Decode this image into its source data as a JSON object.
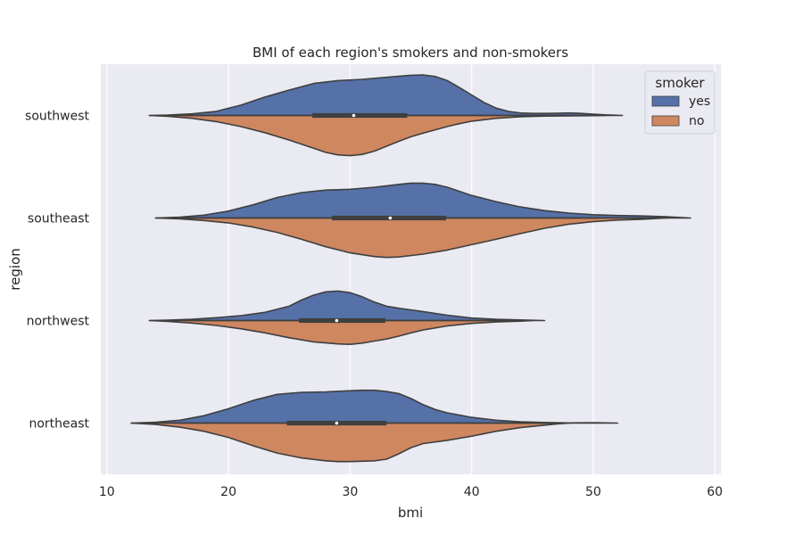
{
  "chart_data": {
    "type": "violin",
    "orientation": "horizontal",
    "split": true,
    "title": "BMI of each region's smokers and non-smokers",
    "xlabel": "bmi",
    "ylabel": "region",
    "xlim": [
      9.5,
      60.5
    ],
    "xticks": [
      10,
      20,
      30,
      40,
      50,
      60
    ],
    "xtick_labels": [
      "10",
      "20",
      "30",
      "40",
      "50",
      "60"
    ],
    "grid": true,
    "categories": [
      "southwest",
      "southeast",
      "northwest",
      "northeast"
    ],
    "legend": {
      "title": "smoker",
      "position": "top-right",
      "entries": [
        {
          "label": "yes",
          "color": "#5571a8"
        },
        {
          "label": "no",
          "color": "#cf8760"
        }
      ]
    },
    "colors": {
      "yes": "#5571a8",
      "no": "#cf8760",
      "background": "#eaeaf2",
      "outline": "#3f3f3f"
    },
    "violins": [
      {
        "region": "southwest",
        "box": {
          "q1": 26.9,
          "median": 30.3,
          "q3": 34.7,
          "whisker_low": 15.9,
          "whisker_high": 47.6
        },
        "yes": [
          [
            13.5,
            0
          ],
          [
            15,
            0.01
          ],
          [
            17,
            0.04
          ],
          [
            19,
            0.1
          ],
          [
            21,
            0.25
          ],
          [
            23,
            0.45
          ],
          [
            25,
            0.62
          ],
          [
            27,
            0.78
          ],
          [
            29,
            0.85
          ],
          [
            31,
            0.88
          ],
          [
            33,
            0.93
          ],
          [
            35,
            0.98
          ],
          [
            36,
            0.99
          ],
          [
            37,
            0.95
          ],
          [
            38,
            0.85
          ],
          [
            39,
            0.68
          ],
          [
            40,
            0.5
          ],
          [
            41,
            0.32
          ],
          [
            42,
            0.18
          ],
          [
            43,
            0.1
          ],
          [
            44,
            0.06
          ],
          [
            45,
            0.05
          ],
          [
            46,
            0.05
          ],
          [
            47,
            0.055
          ],
          [
            48,
            0.06
          ],
          [
            49,
            0.05
          ],
          [
            50,
            0.03
          ],
          [
            51,
            0.015
          ],
          [
            52,
            0.005
          ],
          [
            52.4,
            0
          ]
        ],
        "no": [
          [
            13.5,
            0
          ],
          [
            15,
            0.02
          ],
          [
            17,
            0.07
          ],
          [
            19,
            0.15
          ],
          [
            21,
            0.27
          ],
          [
            23,
            0.42
          ],
          [
            25,
            0.6
          ],
          [
            27,
            0.8
          ],
          [
            28,
            0.9
          ],
          [
            29,
            0.96
          ],
          [
            30,
            0.98
          ],
          [
            31,
            0.95
          ],
          [
            32,
            0.87
          ],
          [
            33,
            0.75
          ],
          [
            34,
            0.63
          ],
          [
            35,
            0.52
          ],
          [
            36,
            0.43
          ],
          [
            37,
            0.35
          ],
          [
            38,
            0.27
          ],
          [
            39,
            0.2
          ],
          [
            40,
            0.14
          ],
          [
            42,
            0.07
          ],
          [
            44,
            0.03
          ],
          [
            46,
            0.015
          ],
          [
            48,
            0.01
          ],
          [
            50,
            0.005
          ],
          [
            51,
            0
          ]
        ]
      },
      {
        "region": "southeast",
        "box": {
          "q1": 28.5,
          "median": 33.3,
          "q3": 37.9,
          "whisker_low": 16.8,
          "whisker_high": 50.4
        },
        "yes": [
          [
            14,
            0
          ],
          [
            16,
            0.02
          ],
          [
            18,
            0.07
          ],
          [
            20,
            0.17
          ],
          [
            22,
            0.32
          ],
          [
            24,
            0.5
          ],
          [
            26,
            0.62
          ],
          [
            28,
            0.68
          ],
          [
            30,
            0.7
          ],
          [
            32,
            0.75
          ],
          [
            34,
            0.82
          ],
          [
            35,
            0.85
          ],
          [
            36,
            0.85
          ],
          [
            37,
            0.82
          ],
          [
            38,
            0.75
          ],
          [
            39,
            0.65
          ],
          [
            40,
            0.55
          ],
          [
            42,
            0.4
          ],
          [
            44,
            0.27
          ],
          [
            46,
            0.18
          ],
          [
            48,
            0.12
          ],
          [
            50,
            0.08
          ],
          [
            52,
            0.06
          ],
          [
            54,
            0.05
          ],
          [
            56,
            0.03
          ],
          [
            57,
            0.015
          ],
          [
            58,
            0
          ]
        ],
        "no": [
          [
            14,
            0
          ],
          [
            16,
            0.02
          ],
          [
            18,
            0.06
          ],
          [
            20,
            0.12
          ],
          [
            22,
            0.22
          ],
          [
            24,
            0.35
          ],
          [
            26,
            0.52
          ],
          [
            28,
            0.7
          ],
          [
            30,
            0.85
          ],
          [
            32,
            0.94
          ],
          [
            33,
            0.96
          ],
          [
            34,
            0.95
          ],
          [
            36,
            0.88
          ],
          [
            38,
            0.78
          ],
          [
            40,
            0.65
          ],
          [
            42,
            0.52
          ],
          [
            44,
            0.38
          ],
          [
            46,
            0.25
          ],
          [
            48,
            0.15
          ],
          [
            50,
            0.09
          ],
          [
            52,
            0.05
          ],
          [
            54,
            0.03
          ],
          [
            55,
            0.015
          ],
          [
            56,
            0
          ]
        ]
      },
      {
        "region": "northwest",
        "box": {
          "q1": 25.8,
          "median": 28.9,
          "q3": 32.9,
          "whisker_low": 17.4,
          "whisker_high": 42.1
        },
        "yes": [
          [
            13.5,
            0
          ],
          [
            15,
            0.01
          ],
          [
            17,
            0.03
          ],
          [
            19,
            0.07
          ],
          [
            21,
            0.12
          ],
          [
            23,
            0.2
          ],
          [
            25,
            0.35
          ],
          [
            26,
            0.5
          ],
          [
            27,
            0.62
          ],
          [
            28,
            0.7
          ],
          [
            29,
            0.72
          ],
          [
            30,
            0.68
          ],
          [
            31,
            0.58
          ],
          [
            32,
            0.45
          ],
          [
            33,
            0.35
          ],
          [
            34,
            0.3
          ],
          [
            35,
            0.26
          ],
          [
            36,
            0.22
          ],
          [
            38,
            0.13
          ],
          [
            40,
            0.06
          ],
          [
            42,
            0.03
          ],
          [
            44,
            0.015
          ],
          [
            46,
            0
          ]
        ],
        "no": [
          [
            13.5,
            0
          ],
          [
            15,
            0.02
          ],
          [
            17,
            0.06
          ],
          [
            19,
            0.12
          ],
          [
            21,
            0.2
          ],
          [
            23,
            0.3
          ],
          [
            25,
            0.42
          ],
          [
            27,
            0.52
          ],
          [
            29,
            0.57
          ],
          [
            30,
            0.58
          ],
          [
            31,
            0.55
          ],
          [
            32,
            0.5
          ],
          [
            33,
            0.45
          ],
          [
            34,
            0.38
          ],
          [
            35,
            0.3
          ],
          [
            36,
            0.23
          ],
          [
            38,
            0.13
          ],
          [
            40,
            0.07
          ],
          [
            42,
            0.035
          ],
          [
            44,
            0.015
          ],
          [
            45,
            0
          ]
        ]
      },
      {
        "region": "northeast",
        "box": {
          "q1": 24.8,
          "median": 28.9,
          "q3": 33.0,
          "whisker_low": 15.9,
          "whisker_high": 48.1
        },
        "yes": [
          [
            12,
            0
          ],
          [
            14,
            0.02
          ],
          [
            16,
            0.07
          ],
          [
            18,
            0.18
          ],
          [
            20,
            0.35
          ],
          [
            22,
            0.55
          ],
          [
            24,
            0.7
          ],
          [
            26,
            0.75
          ],
          [
            28,
            0.76
          ],
          [
            30,
            0.79
          ],
          [
            31,
            0.8
          ],
          [
            32,
            0.8
          ],
          [
            33,
            0.77
          ],
          [
            34,
            0.72
          ],
          [
            35,
            0.6
          ],
          [
            36,
            0.45
          ],
          [
            37,
            0.33
          ],
          [
            38,
            0.25
          ],
          [
            40,
            0.14
          ],
          [
            42,
            0.07
          ],
          [
            44,
            0.03
          ],
          [
            46,
            0.015
          ],
          [
            48,
            0.005
          ],
          [
            50,
            0.01
          ],
          [
            51,
            0.005
          ],
          [
            52,
            0
          ]
        ],
        "no": [
          [
            12,
            0
          ],
          [
            14,
            0.03
          ],
          [
            16,
            0.1
          ],
          [
            18,
            0.2
          ],
          [
            20,
            0.35
          ],
          [
            22,
            0.55
          ],
          [
            24,
            0.73
          ],
          [
            26,
            0.85
          ],
          [
            28,
            0.92
          ],
          [
            29,
            0.94
          ],
          [
            30,
            0.94
          ],
          [
            32,
            0.92
          ],
          [
            33,
            0.88
          ],
          [
            34,
            0.75
          ],
          [
            35,
            0.6
          ],
          [
            36,
            0.5
          ],
          [
            38,
            0.42
          ],
          [
            40,
            0.32
          ],
          [
            42,
            0.2
          ],
          [
            44,
            0.11
          ],
          [
            46,
            0.05
          ],
          [
            47,
            0.02
          ],
          [
            48,
            0
          ]
        ]
      }
    ]
  }
}
